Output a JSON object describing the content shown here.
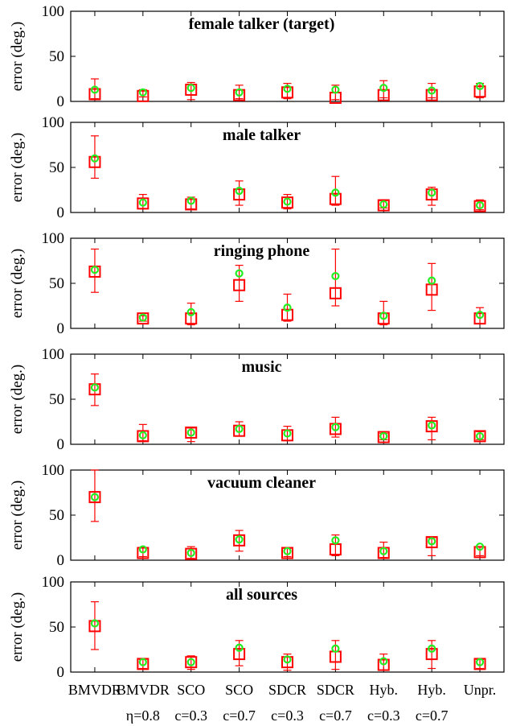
{
  "chart_data": {
    "type": "scatter",
    "legend_markers": {
      "box_color": "#ff0000",
      "circle_color": "#22ee22",
      "errorbar_color": "#ff0000"
    },
    "categories_line1": [
      "BMVDR",
      "BMVDR",
      "SCO",
      "SCO",
      "SDCR",
      "SDCR",
      "Hyb.",
      "Hyb.",
      "Unpr."
    ],
    "categories_line2": [
      "",
      "η=0.8",
      "c=0.3",
      "c=0.7",
      "c=0.3",
      "c=0.7",
      "c=0.3",
      "c=0.7",
      ""
    ],
    "ylabel": "error (deg.)",
    "ylim": [
      0,
      100
    ],
    "yticks": [
      0,
      50,
      100
    ],
    "panels": [
      {
        "title": "female talker (target)",
        "box": [
          8,
          6,
          13,
          7,
          10,
          4,
          7,
          7,
          11
        ],
        "circle": [
          13,
          10,
          15,
          10,
          14,
          13,
          15,
          12,
          17
        ],
        "err_low": [
          3,
          5,
          2,
          3,
          3,
          2,
          4,
          4,
          4
        ],
        "err_high": [
          25,
          13,
          21,
          18,
          20,
          18,
          23,
          20,
          20
        ]
      },
      {
        "title": "male talker",
        "box": [
          56,
          10,
          9,
          20,
          11,
          15,
          8,
          20,
          7
        ],
        "circle": [
          60,
          11,
          13,
          24,
          12,
          22,
          9,
          22,
          8
        ],
        "err_low": [
          38,
          4,
          4,
          8,
          4,
          8,
          5,
          8,
          3
        ],
        "err_high": [
          85,
          20,
          17,
          35,
          20,
          40,
          13,
          28,
          14
        ]
      },
      {
        "title": "ringing phone",
        "box": [
          63,
          11,
          11,
          48,
          15,
          39,
          11,
          43,
          11
        ],
        "circle": [
          65,
          12,
          18,
          61,
          23,
          58,
          14,
          53,
          15
        ],
        "err_low": [
          40,
          8,
          4,
          30,
          8,
          25,
          4,
          20,
          5
        ],
        "err_high": [
          88,
          14,
          28,
          70,
          38,
          88,
          30,
          72,
          23
        ]
      },
      {
        "title": "music",
        "box": [
          61,
          9,
          13,
          15,
          10,
          17,
          8,
          20,
          9
        ],
        "circle": [
          63,
          10,
          13,
          17,
          12,
          19,
          9,
          21,
          9
        ],
        "err_low": [
          43,
          4,
          3,
          9,
          4,
          8,
          5,
          5,
          5
        ],
        "err_high": [
          78,
          22,
          18,
          25,
          20,
          30,
          12,
          30,
          14
        ]
      },
      {
        "title": "vacuum cleaner",
        "box": [
          70,
          8,
          7,
          22,
          8,
          12,
          8,
          20,
          9
        ],
        "circle": [
          70,
          12,
          8,
          23,
          10,
          22,
          10,
          21,
          15
        ],
        "err_low": [
          43,
          4,
          2,
          10,
          4,
          5,
          3,
          5,
          5
        ],
        "err_high": [
          100,
          14,
          15,
          33,
          13,
          28,
          20,
          25,
          15
        ]
      },
      {
        "title": "all sources",
        "box": [
          51,
          9,
          11,
          20,
          11,
          17,
          8,
          20,
          9
        ],
        "circle": [
          54,
          11,
          11,
          27,
          14,
          26,
          12,
          26,
          11
        ],
        "err_low": [
          25,
          4,
          3,
          7,
          2,
          3,
          2,
          4,
          4
        ],
        "err_high": [
          78,
          14,
          18,
          35,
          20,
          35,
          20,
          35,
          14
        ]
      }
    ]
  }
}
